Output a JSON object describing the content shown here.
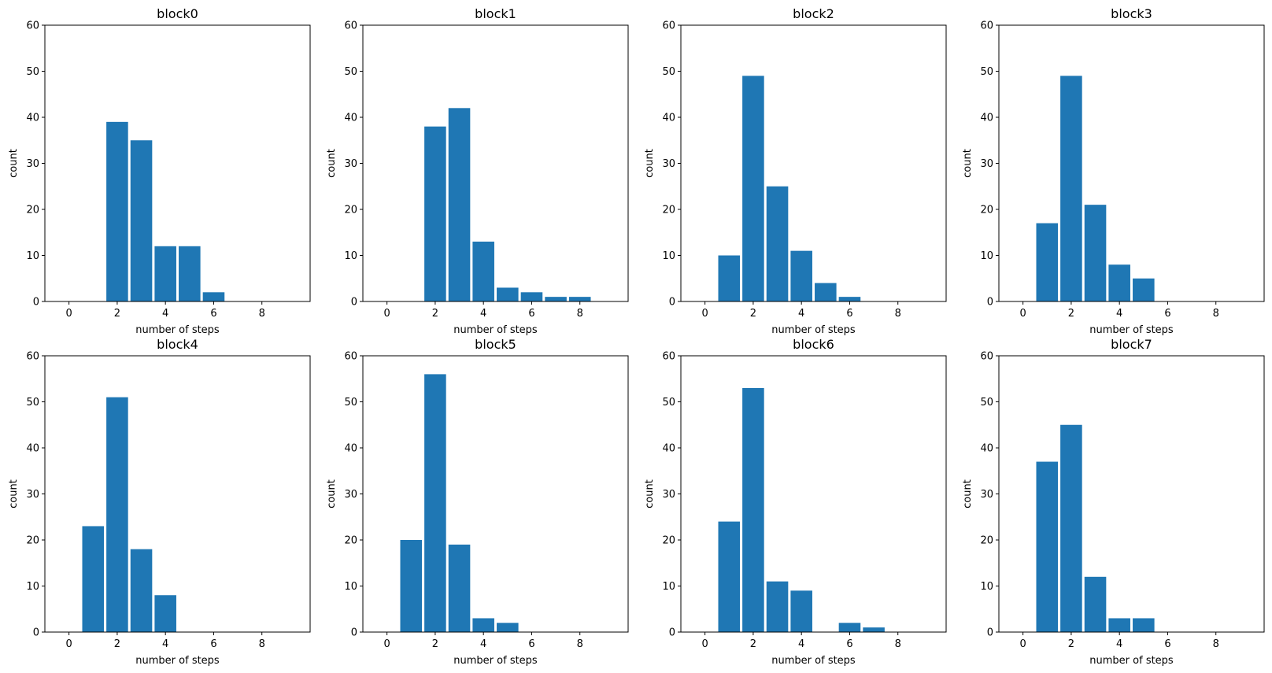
{
  "colors": {
    "bar": "#1f77b4",
    "axis": "#000000",
    "background": "#ffffff"
  },
  "chart_data": [
    {
      "type": "bar",
      "title": "block0",
      "xlabel": "number of steps",
      "ylabel": "count",
      "xlim": [
        -1,
        10
      ],
      "ylim": [
        0,
        60
      ],
      "xticks": [
        "0",
        "2",
        "4",
        "6",
        "8"
      ],
      "yticks": [
        "0",
        "10",
        "20",
        "30",
        "40",
        "50",
        "60"
      ],
      "categories": [
        0,
        1,
        2,
        3,
        4,
        5,
        6,
        7,
        8,
        9
      ],
      "values": [
        0,
        0,
        39,
        35,
        12,
        12,
        2,
        0,
        0,
        0
      ]
    },
    {
      "type": "bar",
      "title": "block1",
      "xlabel": "number of steps",
      "ylabel": "count",
      "xlim": [
        -1,
        10
      ],
      "ylim": [
        0,
        60
      ],
      "xticks": [
        "0",
        "2",
        "4",
        "6",
        "8"
      ],
      "yticks": [
        "0",
        "10",
        "20",
        "30",
        "40",
        "50",
        "60"
      ],
      "categories": [
        0,
        1,
        2,
        3,
        4,
        5,
        6,
        7,
        8,
        9
      ],
      "values": [
        0,
        0,
        38,
        42,
        13,
        3,
        2,
        1,
        1,
        0
      ]
    },
    {
      "type": "bar",
      "title": "block2",
      "xlabel": "number of steps",
      "ylabel": "count",
      "xlim": [
        -1,
        10
      ],
      "ylim": [
        0,
        60
      ],
      "xticks": [
        "0",
        "2",
        "4",
        "6",
        "8"
      ],
      "yticks": [
        "0",
        "10",
        "20",
        "30",
        "40",
        "50",
        "60"
      ],
      "categories": [
        0,
        1,
        2,
        3,
        4,
        5,
        6,
        7,
        8,
        9
      ],
      "values": [
        0,
        10,
        49,
        25,
        11,
        4,
        1,
        0,
        0,
        0
      ]
    },
    {
      "type": "bar",
      "title": "block3",
      "xlabel": "number of steps",
      "ylabel": "count",
      "xlim": [
        -1,
        10
      ],
      "ylim": [
        0,
        60
      ],
      "xticks": [
        "0",
        "2",
        "4",
        "6",
        "8"
      ],
      "yticks": [
        "0",
        "10",
        "20",
        "30",
        "40",
        "50",
        "60"
      ],
      "categories": [
        0,
        1,
        2,
        3,
        4,
        5,
        6,
        7,
        8,
        9
      ],
      "values": [
        0,
        17,
        49,
        21,
        8,
        5,
        0,
        0,
        0,
        0
      ]
    },
    {
      "type": "bar",
      "title": "block4",
      "xlabel": "number of steps",
      "ylabel": "count",
      "xlim": [
        -1,
        10
      ],
      "ylim": [
        0,
        60
      ],
      "xticks": [
        "0",
        "2",
        "4",
        "6",
        "8"
      ],
      "yticks": [
        "0",
        "10",
        "20",
        "30",
        "40",
        "50",
        "60"
      ],
      "categories": [
        0,
        1,
        2,
        3,
        4,
        5,
        6,
        7,
        8,
        9
      ],
      "values": [
        0,
        23,
        51,
        18,
        8,
        0,
        0,
        0,
        0,
        0
      ]
    },
    {
      "type": "bar",
      "title": "block5",
      "xlabel": "number of steps",
      "ylabel": "count",
      "xlim": [
        -1,
        10
      ],
      "ylim": [
        0,
        60
      ],
      "xticks": [
        "0",
        "2",
        "4",
        "6",
        "8"
      ],
      "yticks": [
        "0",
        "10",
        "20",
        "30",
        "40",
        "50",
        "60"
      ],
      "categories": [
        0,
        1,
        2,
        3,
        4,
        5,
        6,
        7,
        8,
        9
      ],
      "values": [
        0,
        20,
        56,
        19,
        3,
        2,
        0,
        0,
        0,
        0
      ]
    },
    {
      "type": "bar",
      "title": "block6",
      "xlabel": "number of steps",
      "ylabel": "count",
      "xlim": [
        -1,
        10
      ],
      "ylim": [
        0,
        60
      ],
      "xticks": [
        "0",
        "2",
        "4",
        "6",
        "8"
      ],
      "yticks": [
        "0",
        "10",
        "20",
        "30",
        "40",
        "50",
        "60"
      ],
      "categories": [
        0,
        1,
        2,
        3,
        4,
        5,
        6,
        7,
        8,
        9
      ],
      "values": [
        0,
        24,
        53,
        11,
        9,
        0,
        2,
        1,
        0,
        0
      ]
    },
    {
      "type": "bar",
      "title": "block7",
      "xlabel": "number of steps",
      "ylabel": "count",
      "xlim": [
        -1,
        10
      ],
      "ylim": [
        0,
        60
      ],
      "xticks": [
        "0",
        "2",
        "4",
        "6",
        "8"
      ],
      "yticks": [
        "0",
        "10",
        "20",
        "30",
        "40",
        "50",
        "60"
      ],
      "categories": [
        0,
        1,
        2,
        3,
        4,
        5,
        6,
        7,
        8,
        9
      ],
      "values": [
        0,
        37,
        45,
        12,
        3,
        3,
        0,
        0,
        0,
        0
      ]
    }
  ]
}
